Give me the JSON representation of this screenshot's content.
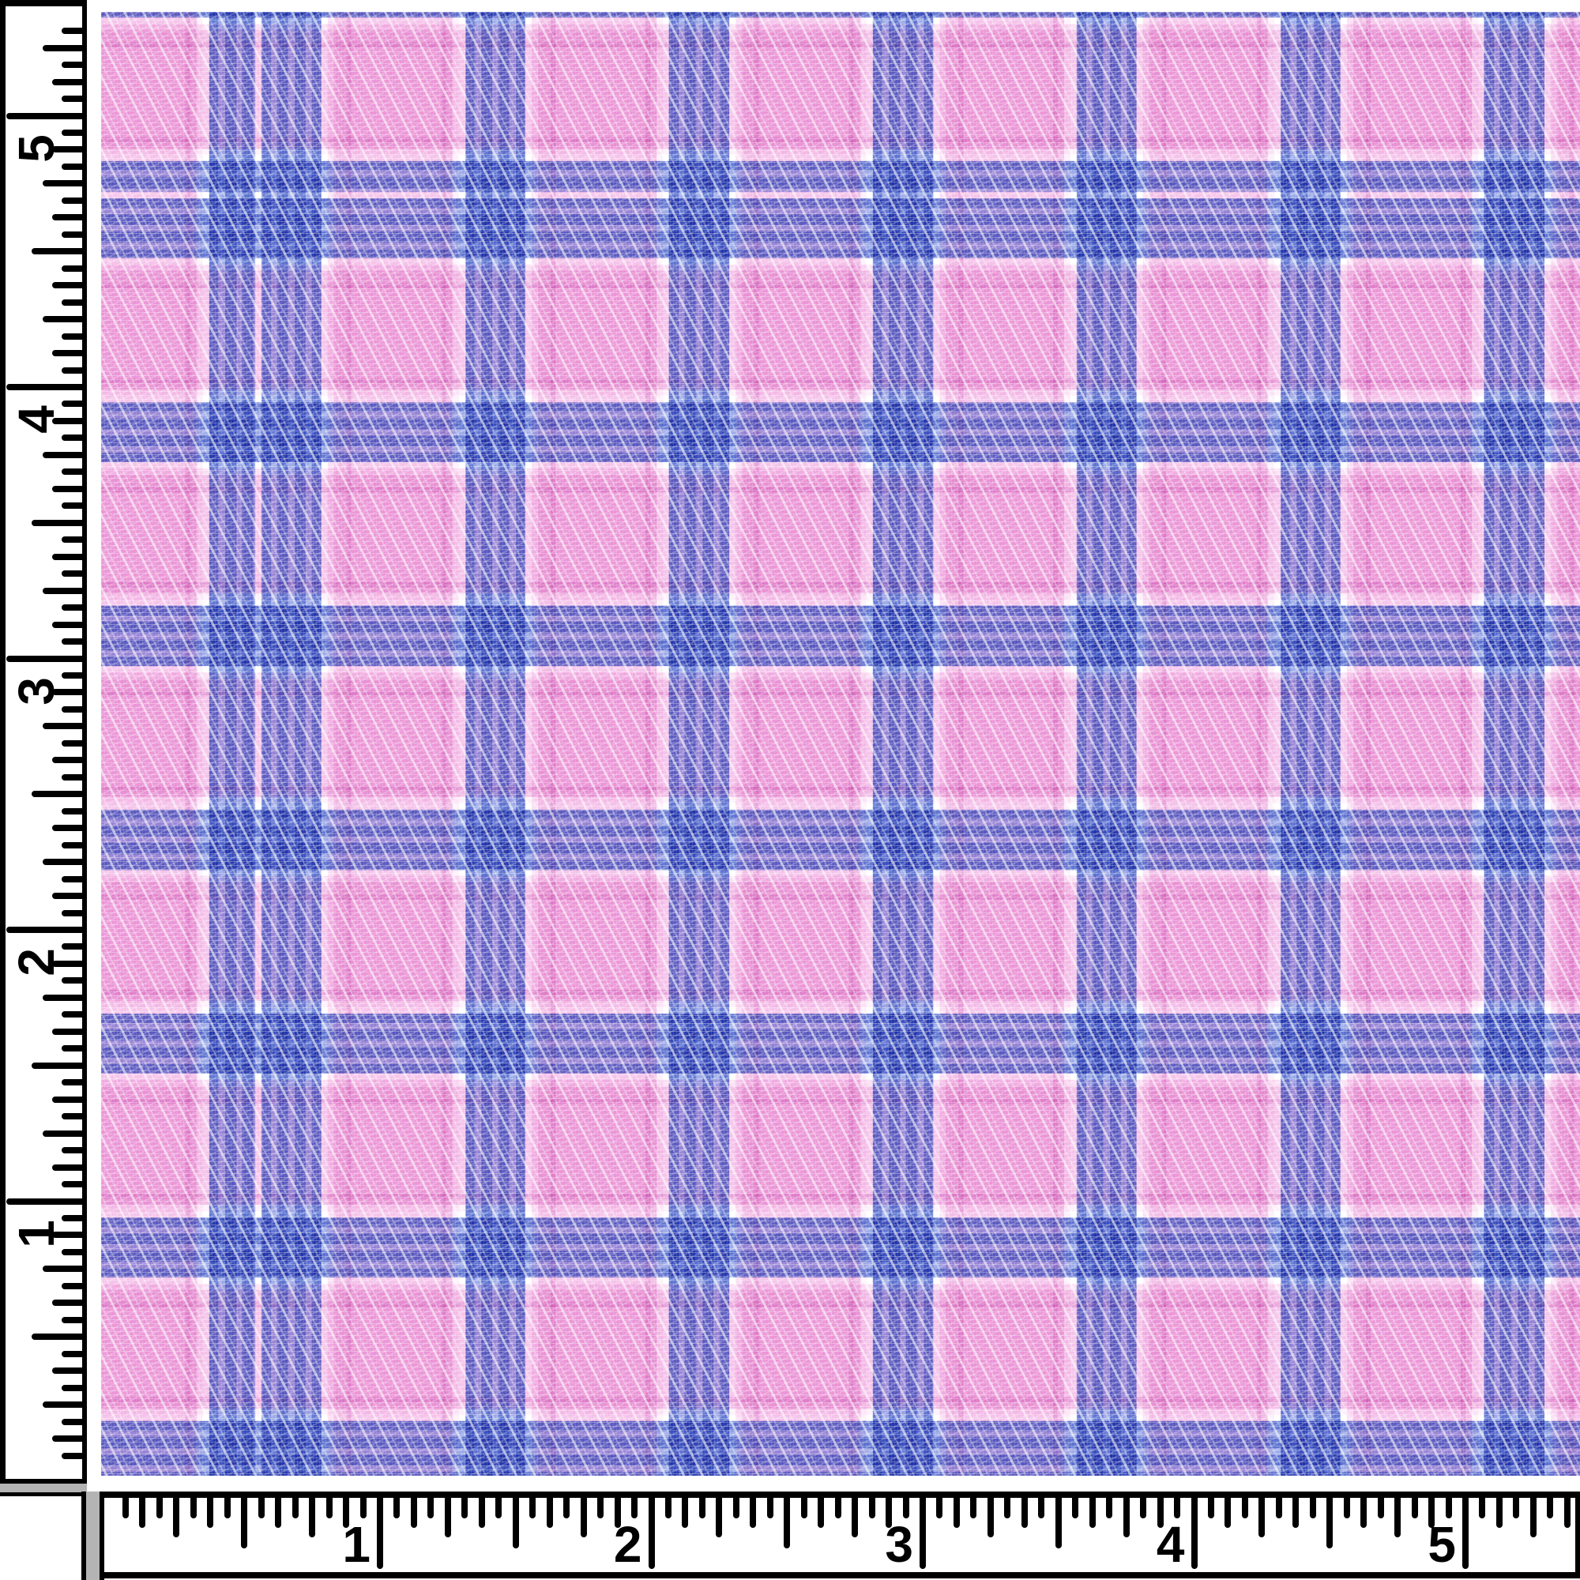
{
  "image": {
    "kind": "fabric-swatch-photo-with-rulers"
  },
  "fabric": {
    "pattern": "glen-plaid-houndstooth-check",
    "colors": {
      "rulerInk": "#000000",
      "rulerFill": "#ffffff",
      "cornerGray": "#b4b4b4",
      "white": "#ffffff",
      "blueDark": "#6076d2",
      "blueDark2": "#5b72d0",
      "blueLight": "#9cabe8",
      "pinkPale": "#fadef4",
      "pinkMed": "#f2bce6",
      "pinkDeep": "#e8a0da",
      "pinkMain": "#f5c2ea",
      "pinkWhite": "#fdf0fa"
    }
  },
  "rulers": {
    "left": {
      "labels": [
        "1",
        "2",
        "3",
        "4",
        "5"
      ]
    },
    "bottom": {
      "labels": [
        "1",
        "2",
        "3",
        "4",
        "5"
      ]
    }
  }
}
